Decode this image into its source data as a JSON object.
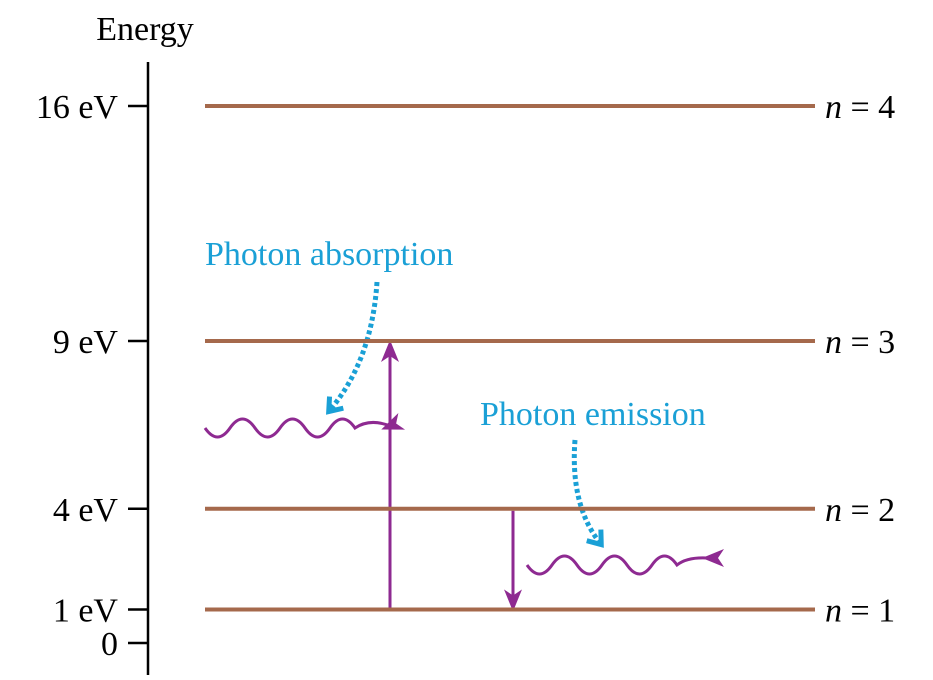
{
  "axis": {
    "label": "Energy",
    "ticks": [
      {
        "value": 16,
        "label": "16 eV"
      },
      {
        "value": 9,
        "label": "9 eV"
      },
      {
        "value": 4,
        "label": "4 eV"
      },
      {
        "value": 1,
        "label": "1 eV"
      },
      0
    ]
  },
  "levels": [
    "n = 4",
    "n = 3",
    "n = 2",
    "n = 1"
  ],
  "annotations": {
    "absorption": "Photon absorption",
    "emission": "Photon emission"
  }
}
